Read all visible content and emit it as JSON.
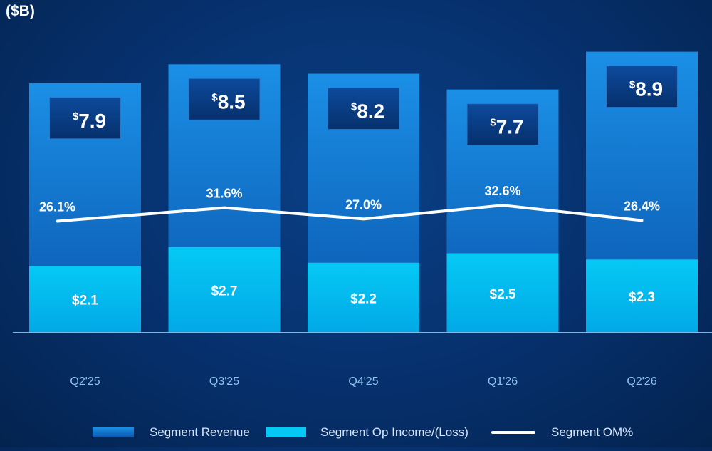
{
  "unit_label": "($B)",
  "colors": {
    "revenue_bar_top": "#1b8fe6",
    "revenue_bar_bottom": "#0a56ad",
    "op_income_bar_top": "#05c9f5",
    "op_income_bar_bottom": "#02a9e6",
    "om_line": "#ffffff",
    "revenue_badge_bg": "#0a3e8a",
    "axis_label": "#8fc4ee",
    "value_text": "#ffffff"
  },
  "chart_data": {
    "type": "bar",
    "categories": [
      "Q2'25",
      "Q3'25",
      "Q4'25",
      "Q1'26",
      "Q2'26"
    ],
    "series": [
      {
        "name": "Segment Revenue",
        "values": [
          7.9,
          8.5,
          8.2,
          7.7,
          8.9
        ],
        "labels": [
          "7.9",
          "8.5",
          "8.2",
          "7.7",
          "8.9"
        ],
        "label_prefix": "$"
      },
      {
        "name": "Segment Op Income/(Loss)",
        "values": [
          2.1,
          2.7,
          2.2,
          2.5,
          2.3
        ],
        "labels": [
          "$2.1",
          "$2.7",
          "$2.2",
          "$2.5",
          "$2.3"
        ]
      },
      {
        "name": "Segment OM%",
        "type": "line",
        "values": [
          26.1,
          31.6,
          27.0,
          32.6,
          26.4
        ],
        "labels": [
          "26.1%",
          "31.6%",
          "27.0%",
          "32.6%",
          "26.4%"
        ]
      }
    ],
    "ylim": [
      0,
      10
    ],
    "om_ylim": [
      0,
      40
    ],
    "grid": false,
    "legend_position": "bottom"
  },
  "legend": [
    {
      "label": "Segment Revenue",
      "swatch": "revenue"
    },
    {
      "label": "Segment Op Income/(Loss)",
      "swatch": "op_income"
    },
    {
      "label": "Segment OM%",
      "swatch": "line"
    }
  ]
}
